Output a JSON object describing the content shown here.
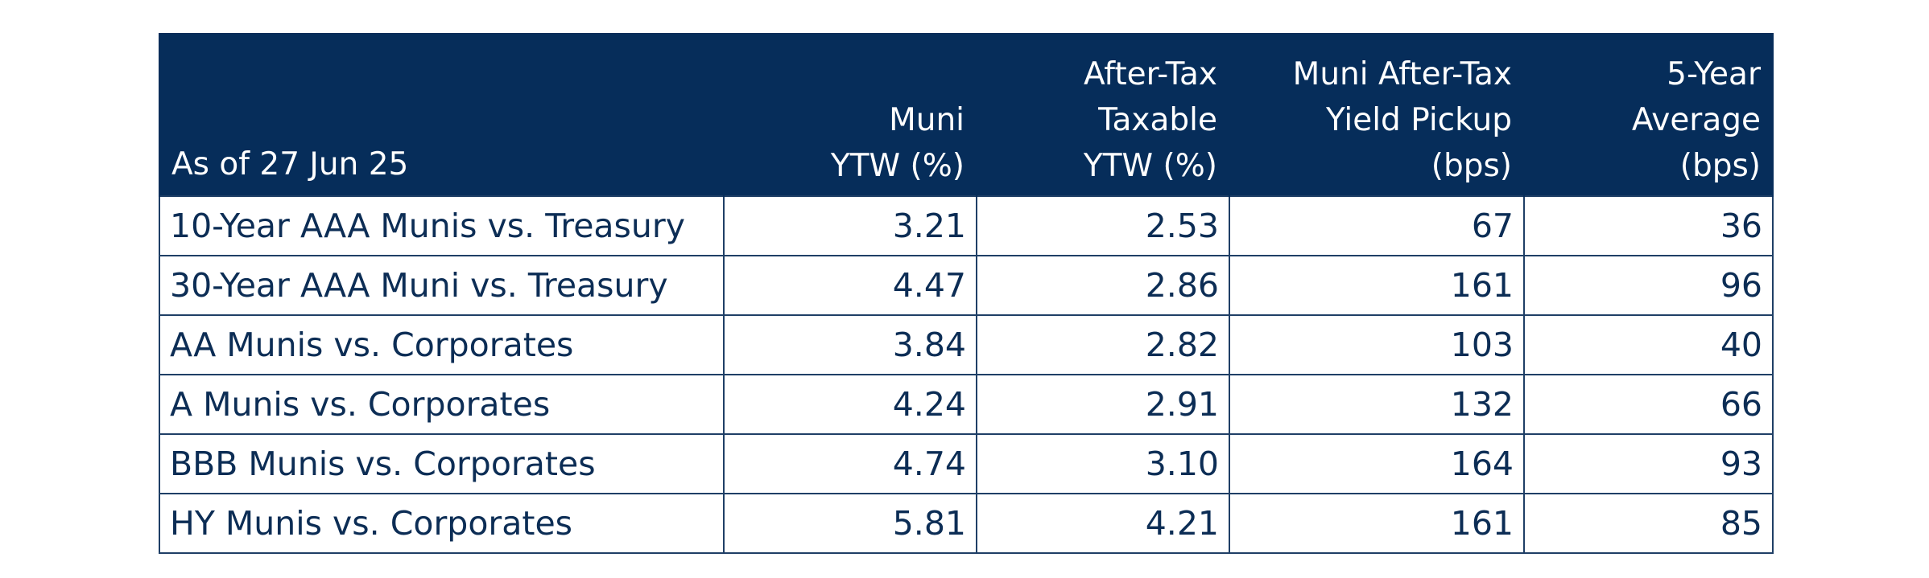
{
  "table": {
    "headers": [
      "As of 27 Jun 25",
      "Muni\nYTW (%)",
      "After-Tax\nTaxable\nYTW (%)",
      "Muni After-Tax\nYield Pickup\n(bps)",
      "5-Year\nAverage\n(bps)"
    ],
    "rows": [
      [
        "10-Year AAA Munis vs. Treasury",
        "3.21",
        "2.53",
        "67",
        "36"
      ],
      [
        "30-Year AAA Muni vs. Treasury",
        "4.47",
        "2.86",
        "161",
        "96"
      ],
      [
        "AA Munis vs. Corporates",
        "3.84",
        "2.82",
        "103",
        "40"
      ],
      [
        "A Munis vs. Corporates",
        "4.24",
        "2.91",
        "132",
        "66"
      ],
      [
        "BBB Munis vs. Corporates",
        "4.74",
        "3.10",
        "164",
        "93"
      ],
      [
        "HY Munis vs. Corporates",
        "5.81",
        "4.21",
        "161",
        "85"
      ]
    ]
  },
  "colors": {
    "header_bg": "#062d5a",
    "text": "#0c2d55",
    "border": "#1f3f66"
  }
}
